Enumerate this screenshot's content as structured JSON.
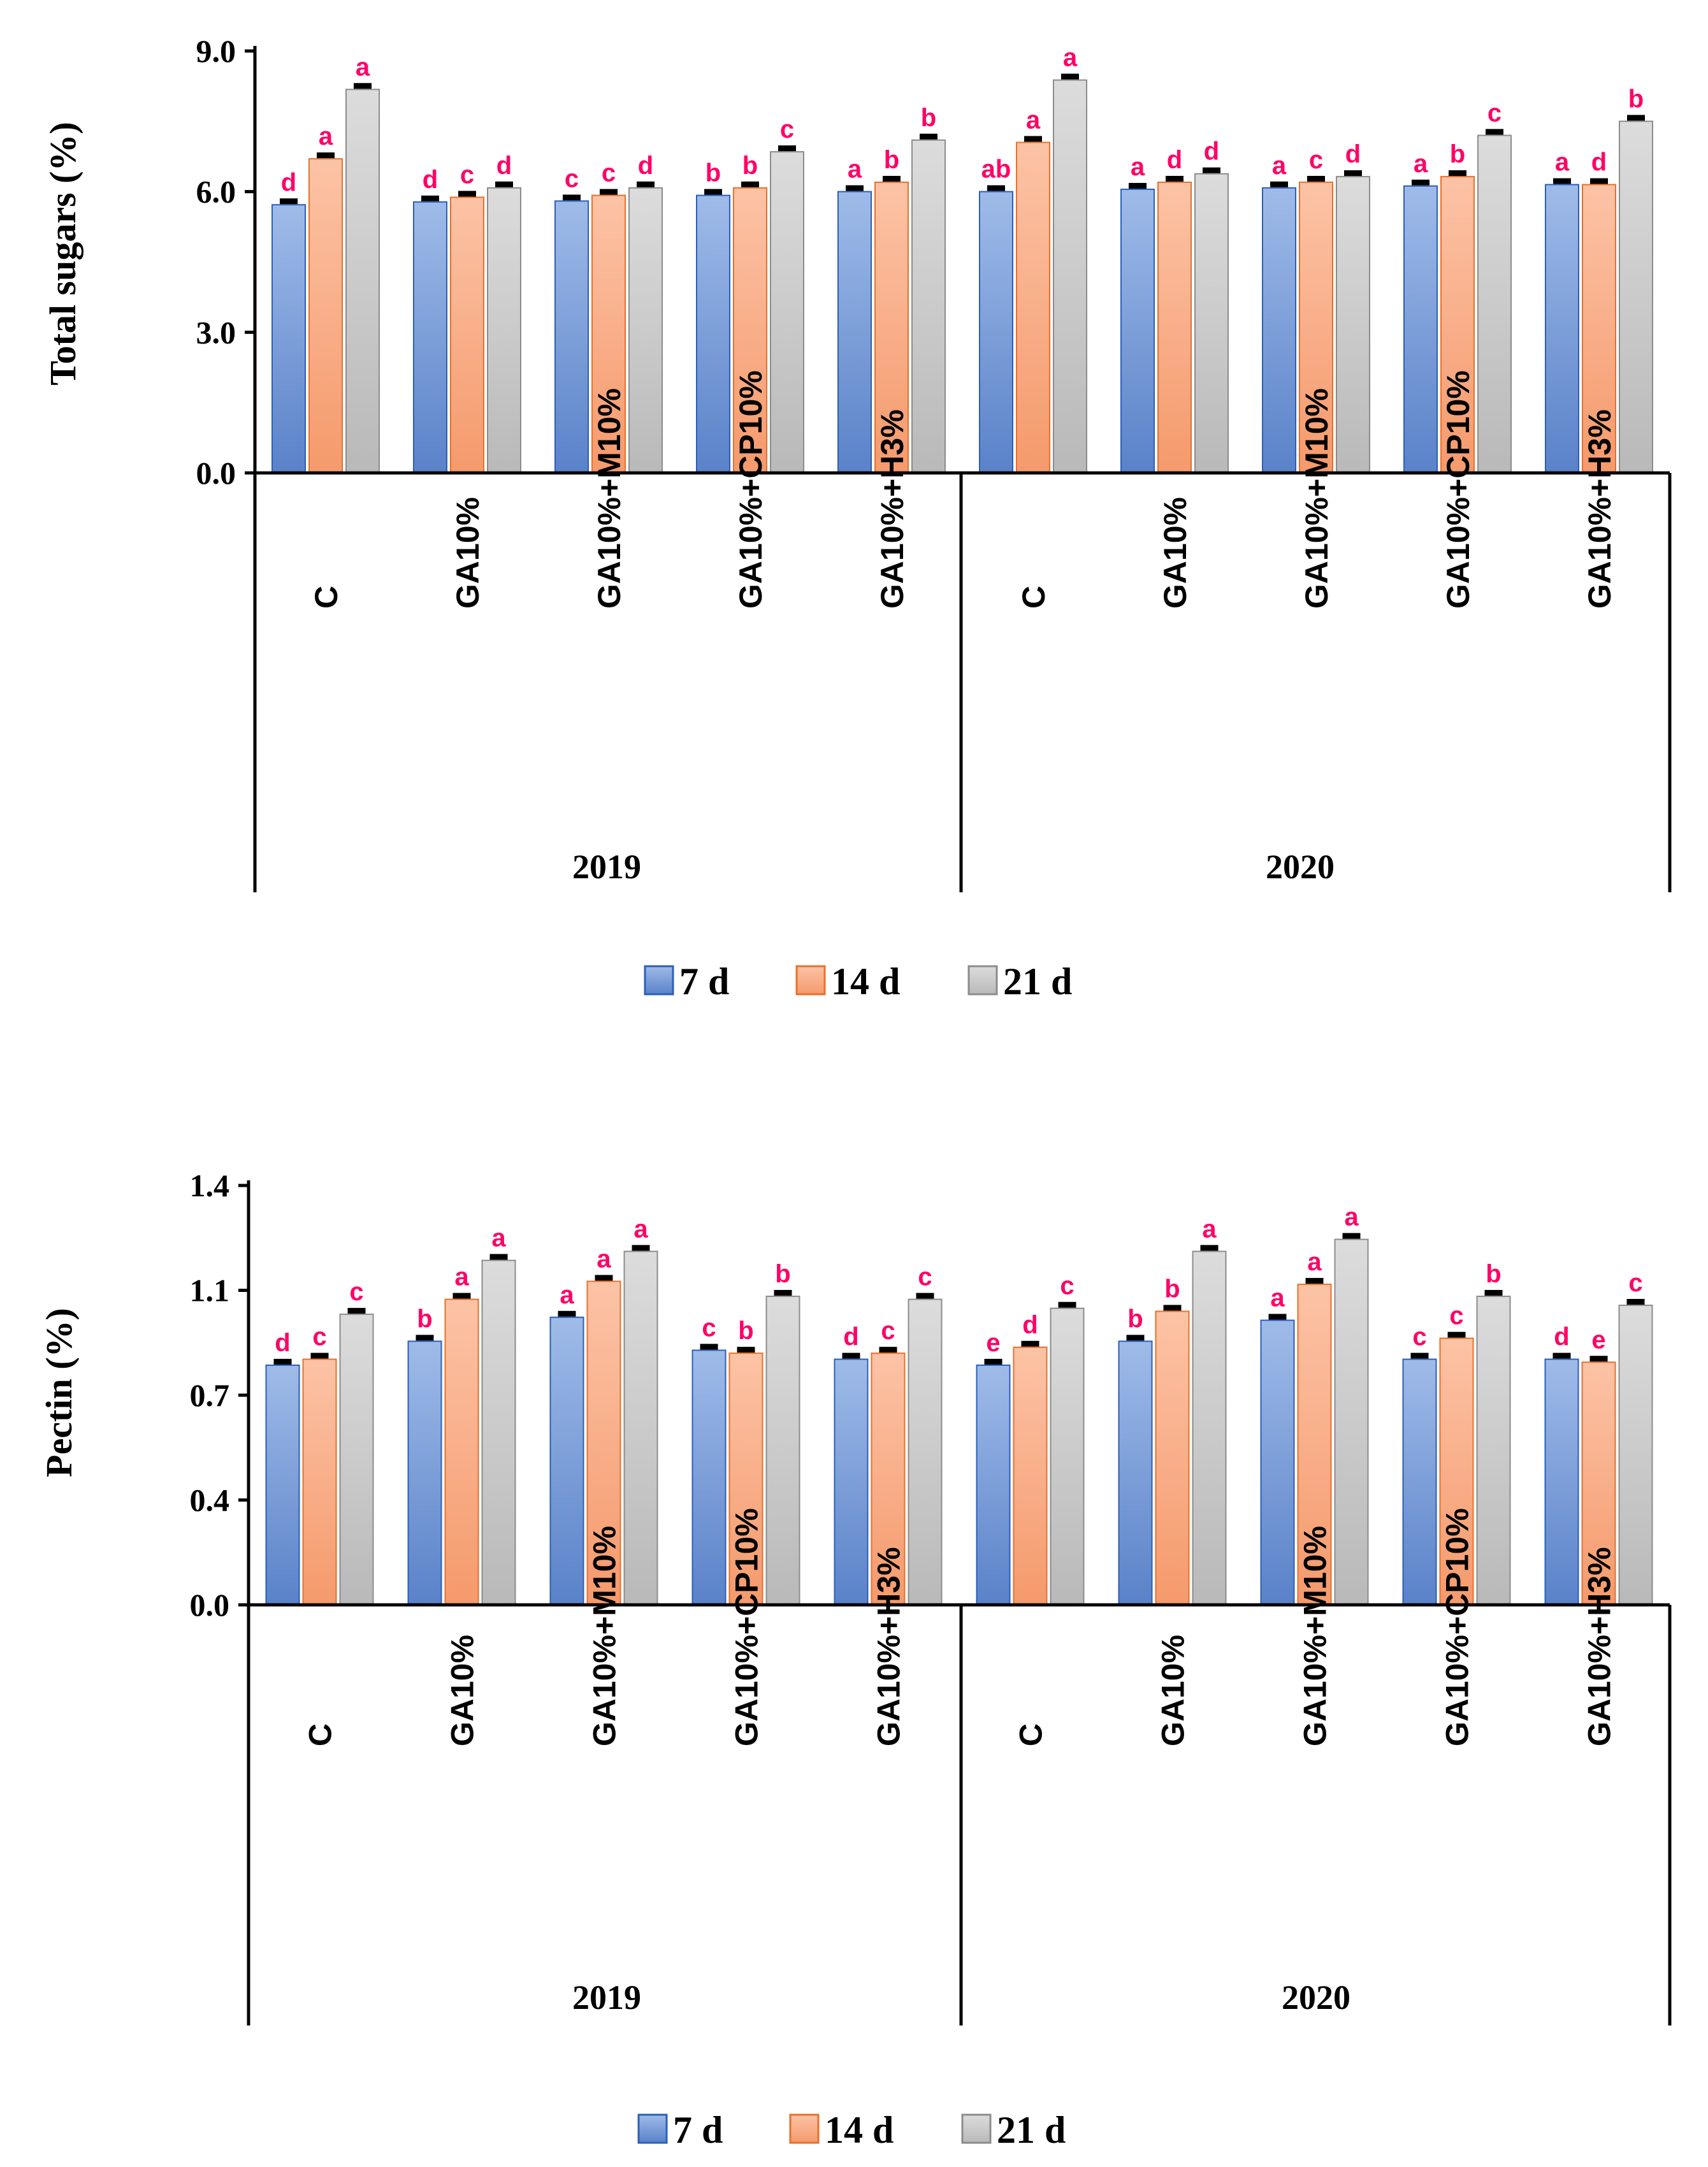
{
  "colors": {
    "series": [
      "#6e95d6",
      "#f7a67c",
      "#c9c9c9"
    ],
    "series_stroke": [
      "#2c5fb8",
      "#e8702c",
      "#8c8c8c"
    ],
    "letters": "#ff0066"
  },
  "chart_data": [
    {
      "type": "bar",
      "ylabel": "Total sugars (%)",
      "ylim": [
        0,
        9
      ],
      "yticks": [
        "0.0",
        "3.0",
        "6.0",
        "9.0"
      ],
      "ytick_values": [
        0,
        3,
        6,
        9
      ],
      "groups": [
        "2019",
        "2020"
      ],
      "categories": [
        "C",
        "GA10%",
        "GA10%+M10%",
        "GA10%+CP10%",
        "GA10%+H3%",
        "C",
        "GA10%",
        "GA10%+M10%",
        "GA10%+CP10%",
        "GA10%+H3%"
      ],
      "series": [
        {
          "name": "7 d",
          "values": [
            5.72,
            5.78,
            5.8,
            5.92,
            6.0,
            6.0,
            6.05,
            6.08,
            6.12,
            6.15
          ],
          "letters": [
            "d",
            "d",
            "c",
            "b",
            "a",
            "ab",
            "a",
            "a",
            "a",
            "a"
          ]
        },
        {
          "name": "14 d",
          "values": [
            6.7,
            5.88,
            5.92,
            6.08,
            6.2,
            7.05,
            6.2,
            6.2,
            6.32,
            6.15
          ],
          "letters": [
            "a",
            "c",
            "c",
            "b",
            "b",
            "a",
            "d",
            "c",
            "b",
            "d"
          ]
        },
        {
          "name": "21 d",
          "values": [
            8.18,
            6.08,
            6.08,
            6.85,
            7.1,
            8.38,
            6.38,
            6.32,
            7.2,
            7.5
          ],
          "letters": [
            "a",
            "d",
            "d",
            "c",
            "b",
            "a",
            "d",
            "d",
            "c",
            "b"
          ]
        }
      ],
      "legend": [
        "7 d",
        "14 d",
        "21 d"
      ],
      "legend_position": "bottom"
    },
    {
      "type": "bar",
      "ylabel": "Pectin (%)",
      "ylim": [
        0,
        1.4
      ],
      "yticks": [
        "0.0",
        "0.4",
        "0.7",
        "1.1",
        "1.4"
      ],
      "ytick_values": [
        0,
        0.35,
        0.7,
        1.05,
        1.4
      ],
      "groups": [
        "2019",
        "2020"
      ],
      "categories": [
        "C",
        "GA10%",
        "GA10%+M10%",
        "GA10%+CP10%",
        "GA10%+H3%",
        "C",
        "GA10%",
        "GA10%+M10%",
        "GA10%+CP10%",
        "GA10%+H3%"
      ],
      "series": [
        {
          "name": "7 d",
          "values": [
            0.8,
            0.88,
            0.96,
            0.85,
            0.82,
            0.8,
            0.88,
            0.95,
            0.82,
            0.82
          ],
          "letters": [
            "d",
            "b",
            "a",
            "c",
            "d",
            "e",
            "b",
            "a",
            "c",
            "d"
          ]
        },
        {
          "name": "14 d",
          "values": [
            0.82,
            1.02,
            1.08,
            0.84,
            0.84,
            0.86,
            0.98,
            1.07,
            0.89,
            0.81
          ],
          "letters": [
            "c",
            "a",
            "a",
            "b",
            "c",
            "d",
            "b",
            "a",
            "c",
            "e"
          ]
        },
        {
          "name": "21 d",
          "values": [
            0.97,
            1.15,
            1.18,
            1.03,
            1.02,
            0.99,
            1.18,
            1.22,
            1.03,
            1.0
          ],
          "letters": [
            "c",
            "a",
            "a",
            "b",
            "c",
            "c",
            "a",
            "a",
            "b",
            "c"
          ]
        }
      ],
      "legend": [
        "7 d",
        "14 d",
        "21 d"
      ],
      "legend_position": "bottom"
    }
  ]
}
